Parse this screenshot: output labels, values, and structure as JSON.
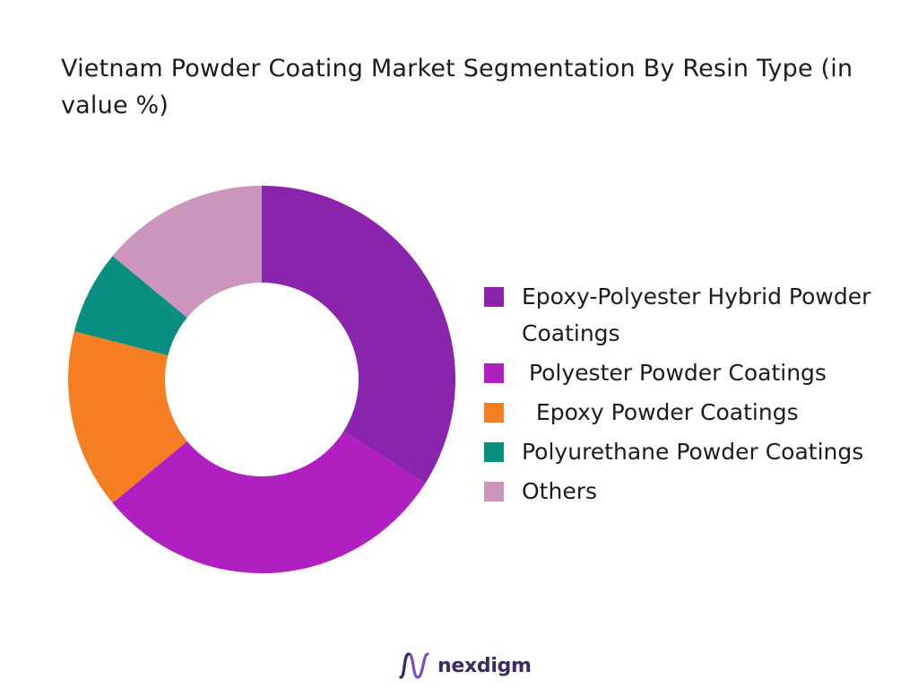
{
  "chart_data": {
    "type": "pie",
    "variant": "donut",
    "title": "Vietnam Powder Coating Market Segmentation By Resin Type (in value %)",
    "legend_position": "right",
    "series": [
      {
        "name": "Epoxy-Polyester Hybrid Powder Coatings",
        "value": 34,
        "color": "#8a24ad"
      },
      {
        "name": " Polyester Powder Coatings",
        "value": 30,
        "color": "#b01fbf"
      },
      {
        "name": "  Epoxy Powder Coatings",
        "value": 15,
        "color": "#f47e21"
      },
      {
        "name": "Polyurethane Powder Coatings",
        "value": 7,
        "color": "#088f80"
      },
      {
        "name": "Others",
        "value": 14,
        "color": "#cc95bb"
      }
    ]
  },
  "brand": {
    "name": "nexdigm",
    "logo_icon": "wave-logo-icon",
    "color": "#3b2a63"
  }
}
